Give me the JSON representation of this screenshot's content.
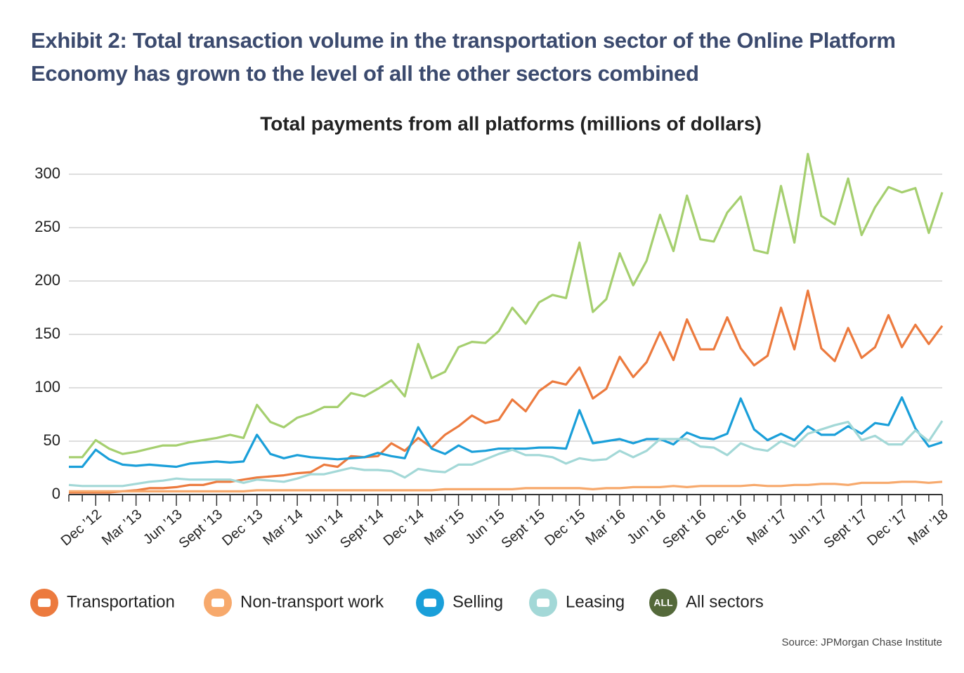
{
  "chart_data": {
    "type": "line",
    "title": "Exhibit 2: Total transaction volume in the transportation sector of the Online Platform Economy has grown to the level of all the other sectors combined",
    "subtitle": "Total payments from all platforms (millions of dollars)",
    "source": "Source: JPMorgan Chase Institute",
    "legend_badge": "ALL",
    "categories": [
      null,
      null,
      "Dec ’12",
      null,
      null,
      "Mar ’13",
      null,
      null,
      "Jun ’13",
      null,
      null,
      "Sept ’13",
      null,
      null,
      "Dec ’13",
      null,
      null,
      "Mar ’14",
      null,
      null,
      "Jun ’14",
      null,
      null,
      "Sept ’14",
      null,
      null,
      "Dec ’14",
      null,
      null,
      "Mar ’15",
      null,
      null,
      "Jun ’15",
      null,
      null,
      "Sept ’15",
      null,
      null,
      "Dec ’15",
      null,
      null,
      "Mar ’16",
      null,
      null,
      "Jun ’16",
      null,
      null,
      "Sept ’16",
      null,
      null,
      "Dec ’16",
      null,
      null,
      "Mar ’17",
      null,
      null,
      "Jun ’17",
      null,
      null,
      "Sept ’17",
      null,
      null,
      "Dec ’17",
      null,
      null,
      "Mar ’18"
    ],
    "ylim": [
      0,
      320
    ],
    "yticks": [
      0,
      50,
      100,
      150,
      200,
      250,
      300
    ],
    "grid": true,
    "legend": "bottom",
    "series": [
      {
        "name": "Transportation",
        "color": "#ec7a3e",
        "values": [
          2,
          2,
          2,
          2,
          3,
          4,
          6,
          6,
          7,
          9,
          9,
          12,
          12,
          14,
          16,
          17,
          18,
          20,
          21,
          28,
          26,
          36,
          35,
          36,
          48,
          41,
          53,
          44,
          56,
          64,
          74,
          67,
          70,
          89,
          78,
          97,
          106,
          103,
          119,
          90,
          99,
          129,
          110,
          124,
          152,
          126,
          164,
          136,
          136,
          166,
          137,
          121,
          130,
          175,
          136,
          191,
          137,
          125,
          156,
          128,
          138,
          168,
          138,
          159,
          141,
          158
        ]
      },
      {
        "name": "Non-transport work",
        "color": "#f7a96c",
        "values": [
          3,
          3,
          3,
          3,
          3,
          3,
          3,
          3,
          3,
          3,
          3,
          3,
          3,
          3,
          4,
          4,
          4,
          4,
          4,
          4,
          4,
          4,
          4,
          4,
          4,
          4,
          4,
          4,
          5,
          5,
          5,
          5,
          5,
          5,
          6,
          6,
          6,
          6,
          6,
          5,
          6,
          6,
          7,
          7,
          7,
          8,
          7,
          8,
          8,
          8,
          8,
          9,
          8,
          8,
          9,
          9,
          10,
          10,
          9,
          11,
          11,
          11,
          12,
          12,
          11,
          12
        ]
      },
      {
        "name": "Selling",
        "color": "#1a9fd9",
        "values": [
          26,
          26,
          42,
          33,
          28,
          27,
          28,
          27,
          26,
          29,
          30,
          31,
          30,
          31,
          56,
          38,
          34,
          37,
          35,
          34,
          33,
          34,
          35,
          39,
          36,
          34,
          63,
          43,
          38,
          46,
          40,
          41,
          43,
          43,
          43,
          44,
          44,
          43,
          79,
          48,
          50,
          52,
          48,
          52,
          52,
          47,
          58,
          53,
          52,
          57,
          90,
          61,
          51,
          57,
          51,
          64,
          56,
          56,
          64,
          57,
          67,
          65,
          91,
          62,
          45,
          49
        ]
      },
      {
        "name": "Leasing",
        "color": "#a3d8d7",
        "values": [
          9,
          8,
          8,
          8,
          8,
          10,
          12,
          13,
          15,
          14,
          14,
          14,
          14,
          11,
          14,
          13,
          12,
          15,
          19,
          19,
          22,
          25,
          23,
          23,
          22,
          16,
          24,
          22,
          21,
          28,
          28,
          33,
          38,
          42,
          37,
          37,
          35,
          29,
          34,
          32,
          33,
          41,
          35,
          41,
          52,
          52,
          52,
          45,
          44,
          37,
          48,
          43,
          41,
          50,
          45,
          57,
          61,
          65,
          68,
          51,
          55,
          47,
          47,
          60,
          50,
          69
        ]
      },
      {
        "name": "All sectors",
        "color": "#a5cf6f",
        "legend_color": "#54693a",
        "values": [
          35,
          35,
          51,
          43,
          38,
          40,
          43,
          46,
          46,
          49,
          51,
          53,
          56,
          53,
          84,
          68,
          63,
          72,
          76,
          82,
          82,
          95,
          92,
          99,
          107,
          92,
          141,
          109,
          115,
          138,
          143,
          142,
          153,
          175,
          160,
          180,
          187,
          184,
          236,
          171,
          183,
          226,
          196,
          219,
          262,
          228,
          280,
          239,
          237,
          264,
          279,
          229,
          226,
          289,
          236,
          319,
          261,
          253,
          296,
          243,
          269,
          288,
          283,
          287,
          245,
          283
        ]
      }
    ]
  }
}
